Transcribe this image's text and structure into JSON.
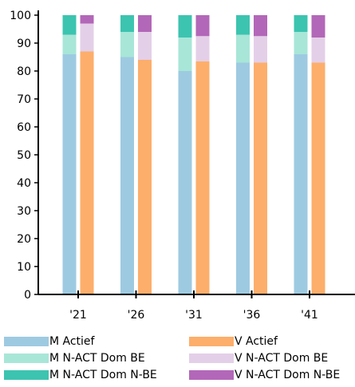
{
  "chart_data": {
    "type": "bar",
    "stacked": true,
    "categories": [
      "'21",
      "'26",
      "'31",
      "'36",
      "'41"
    ],
    "ylim": [
      0,
      100
    ],
    "yticks": [
      0,
      10,
      20,
      30,
      40,
      50,
      60,
      70,
      80,
      90,
      100
    ],
    "title": "",
    "xlabel": "",
    "ylabel": "",
    "grid": false,
    "legend_position": "bottom",
    "groups": [
      {
        "name": "M",
        "series": [
          {
            "name": "M Actief",
            "color": "#9ecae1",
            "values": [
              86,
              85,
              80,
              83,
              86
            ]
          },
          {
            "name": "M N-ACT Dom BE",
            "color": "#a8e6d8",
            "values": [
              7,
              9,
              12,
              10,
              8
            ]
          },
          {
            "name": "M N-ACT Dom N-BE",
            "color": "#3cc4b0",
            "values": [
              7,
              6,
              8,
              7,
              6
            ]
          }
        ]
      },
      {
        "name": "V",
        "series": [
          {
            "name": "V Actief",
            "color": "#fdae6b",
            "values": [
              87,
              84,
              83.5,
              83,
              83
            ]
          },
          {
            "name": "V N-ACT Dom BE",
            "color": "#e4cfe8",
            "values": [
              10,
              10,
              9,
              9.5,
              9
            ]
          },
          {
            "name": "V N-ACT Dom N-BE",
            "color": "#b367b8",
            "values": [
              3,
              6,
              7.5,
              7.5,
              8
            ]
          }
        ]
      }
    ]
  }
}
